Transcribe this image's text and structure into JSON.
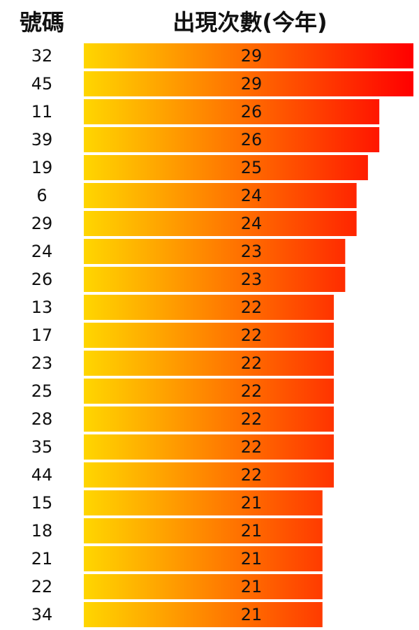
{
  "header": {
    "number_col": "號碼",
    "count_col": "出現次數(今年)"
  },
  "colors": {
    "bar_start": "#ffd600",
    "bar_end": "#ff0000",
    "text": "#111111",
    "background": "#ffffff"
  },
  "chart_data": {
    "type": "bar",
    "orientation": "horizontal",
    "xlabel": "號碼",
    "ylabel": "出現次數(今年)",
    "categories": [
      "32",
      "45",
      "11",
      "39",
      "19",
      "6",
      "29",
      "24",
      "26",
      "13",
      "17",
      "23",
      "25",
      "28",
      "35",
      "44",
      "15",
      "18",
      "21",
      "22",
      "34"
    ],
    "values": [
      29,
      29,
      26,
      26,
      25,
      24,
      24,
      23,
      23,
      22,
      22,
      22,
      22,
      22,
      22,
      22,
      21,
      21,
      21,
      21,
      21
    ],
    "xlim": [
      0,
      29
    ],
    "grid": false,
    "legend": "none"
  }
}
